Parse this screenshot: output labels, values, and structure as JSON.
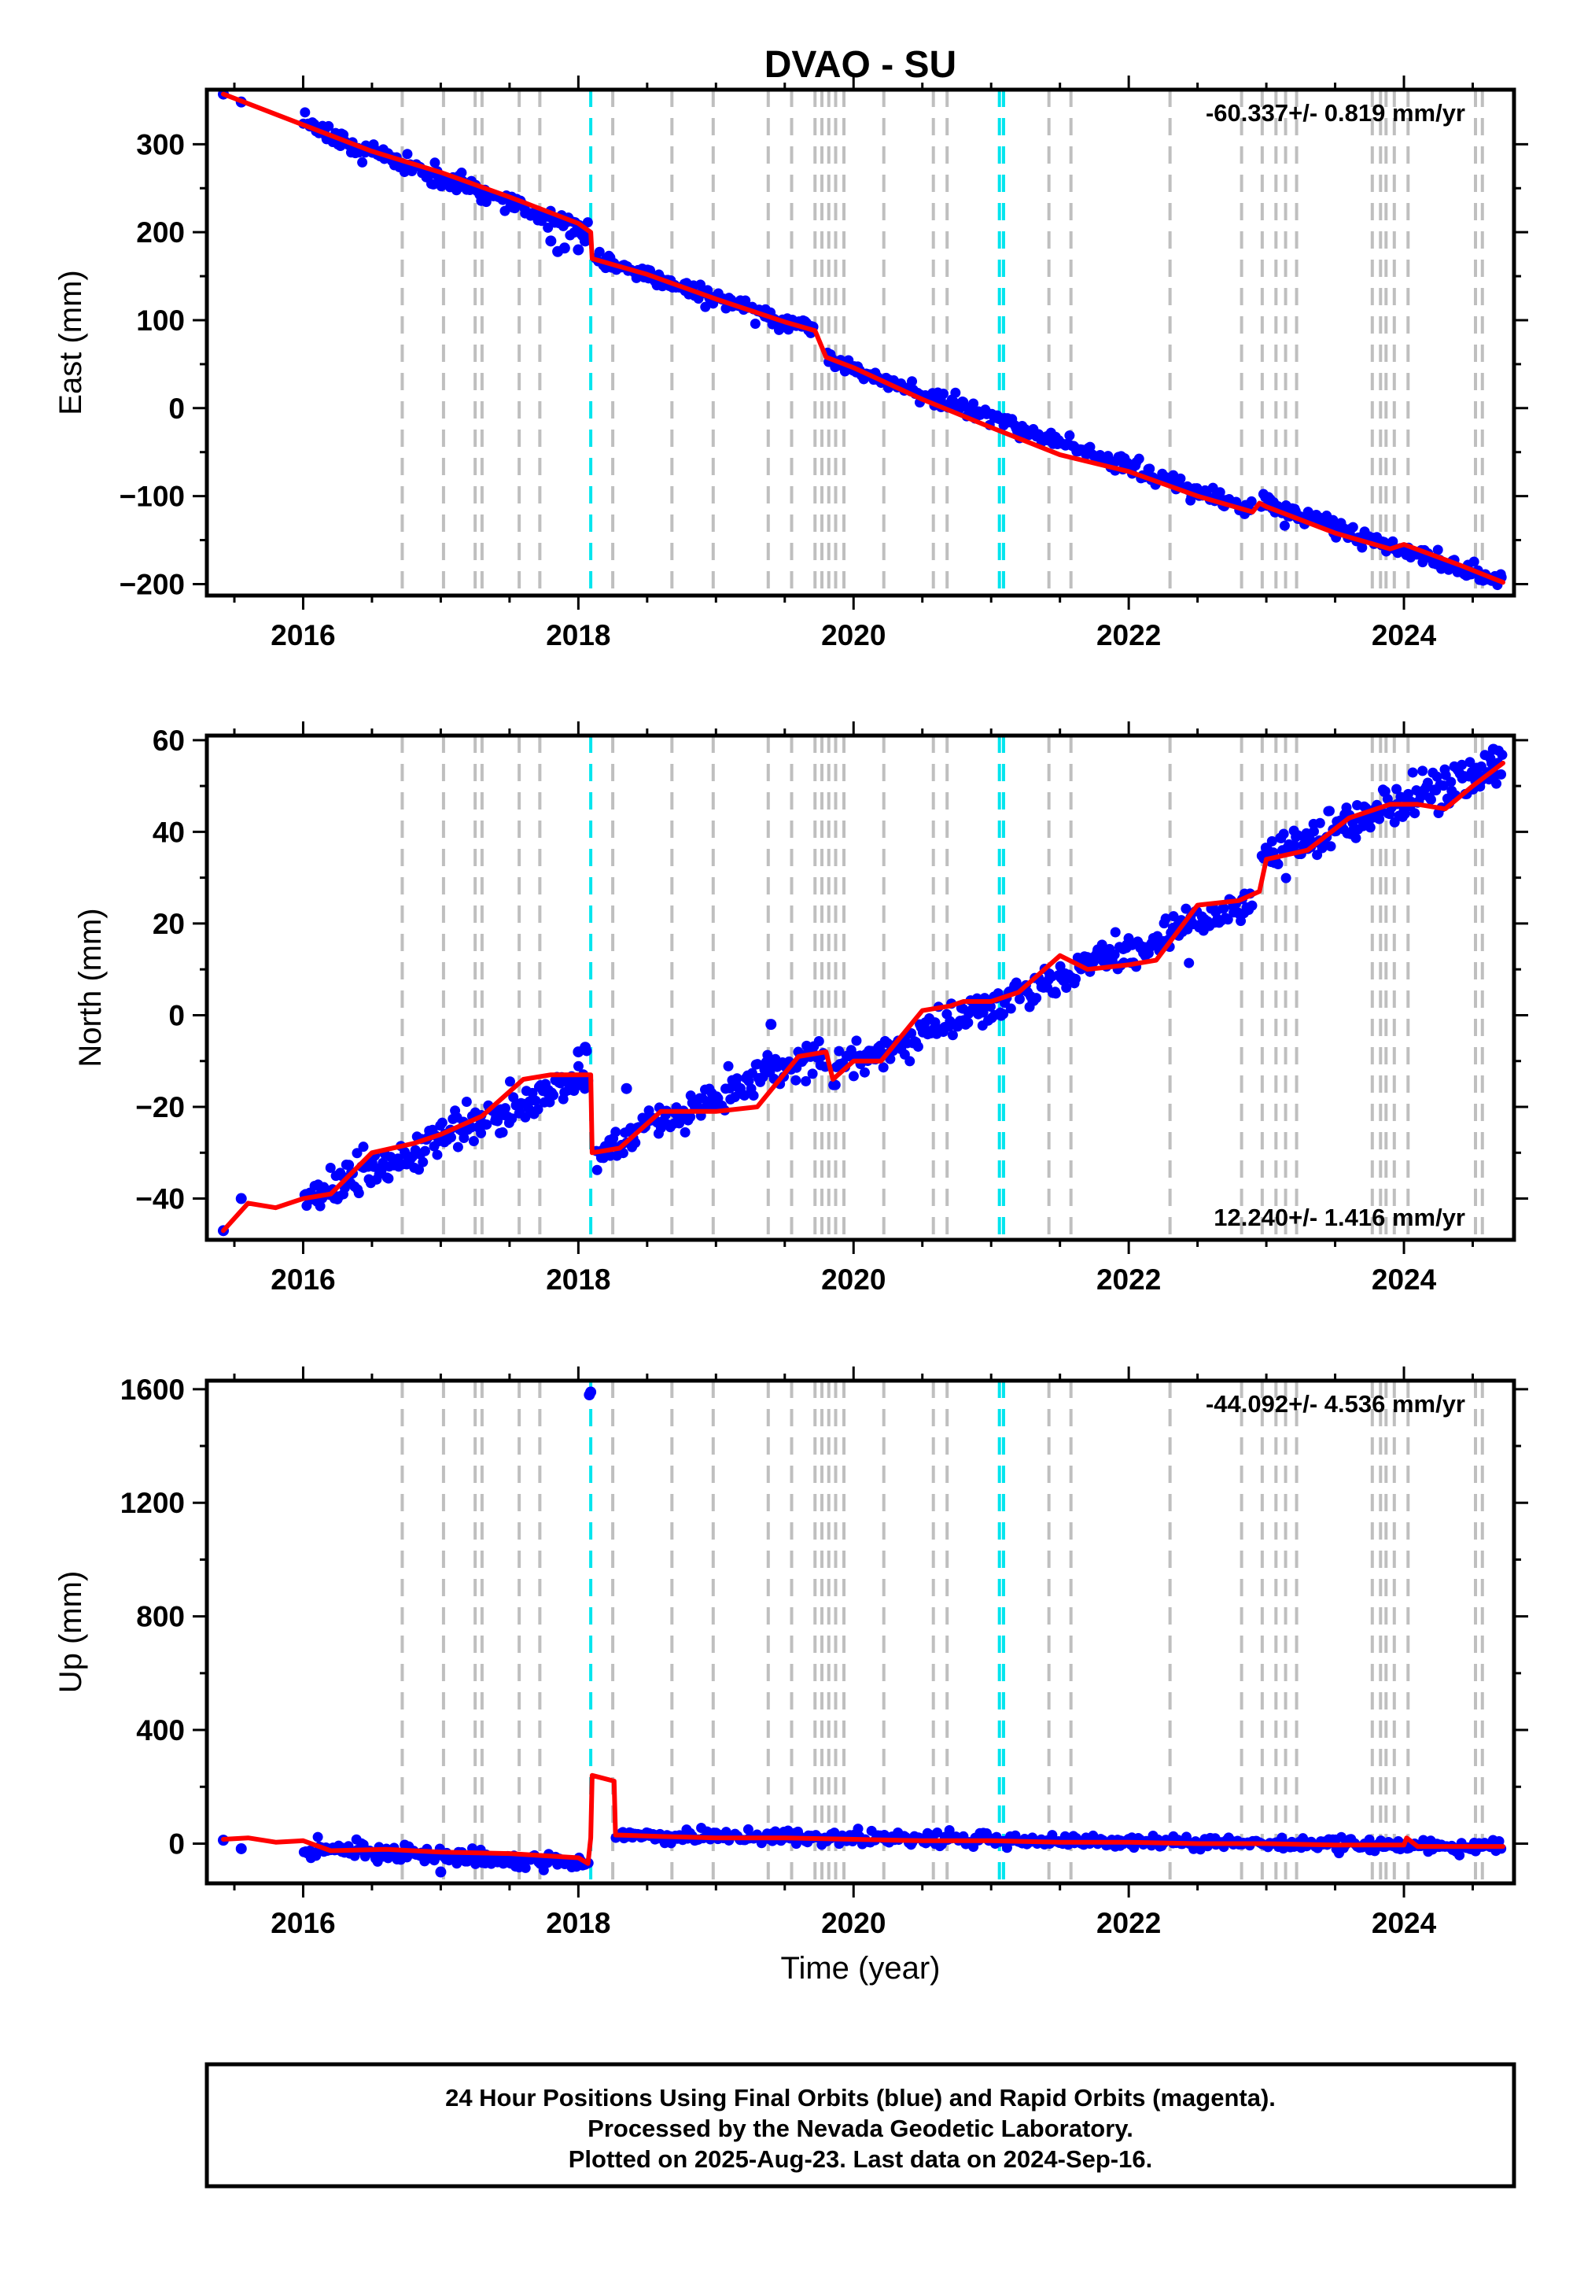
{
  "figure": {
    "title": "DVAO - SU",
    "xlabel": "Time (year)",
    "footer": {
      "line1": "24 Hour Positions Using Final Orbits (blue) and Rapid Orbits (magenta).",
      "line2": "Processed by the Nevada Geodetic Laboratory.",
      "line3": "Plotted on 2025-Aug-23. Last data on 2024-Sep-16."
    },
    "colors": {
      "data_points": "#0000ff",
      "model_line": "#ff0000",
      "equipment_change": "#bfbfbf",
      "earthquake": "#00e5ee",
      "frame": "#000000"
    },
    "gray_event_lines": [
      2016.72,
      2017.02,
      2017.25,
      2017.3,
      2017.57,
      2017.72,
      2018.25,
      2018.68,
      2018.98,
      2019.38,
      2019.55,
      2019.72,
      2019.77,
      2019.82,
      2019.87,
      2019.93,
      2020.22,
      2020.58,
      2020.68,
      2021.42,
      2021.58,
      2022.3,
      2022.82,
      2022.97,
      2023.07,
      2023.14,
      2023.22,
      2023.77,
      2023.83,
      2023.87,
      2023.93,
      2024.03,
      2024.52,
      2024.57
    ],
    "cyan_event_lines": [
      2018.09,
      2021.06,
      2021.09
    ]
  },
  "chart_data": [
    {
      "type": "scatter",
      "component": "east",
      "ylabel": "East (mm)",
      "rate_text": "-60.337+/- 0.819 mm/yr",
      "rate_position": "top-right",
      "xlim": [
        2015.3,
        2024.8
      ],
      "ylim": [
        -213,
        362
      ],
      "xticks": [
        2016,
        2018,
        2020,
        2022,
        2024
      ],
      "yticks": [
        300,
        200,
        100,
        0,
        -100,
        -200
      ],
      "ytick_labels": [
        "300",
        "200",
        "100",
        "0",
        "−100",
        "−200"
      ],
      "series": [
        {
          "kind": "model",
          "x": [
            2015.42,
            2016.0,
            2016.5,
            2017.0,
            2017.5,
            2018.0,
            2018.09,
            2018.1,
            2018.5,
            2019.0,
            2019.5,
            2019.72,
            2019.8,
            2020.0,
            2020.5,
            2021.0,
            2021.5,
            2022.0,
            2022.5,
            2022.9,
            2022.95,
            2023.0,
            2023.5,
            2023.9,
            2024.0,
            2024.4,
            2024.72
          ],
          "y": [
            357,
            322,
            292,
            268,
            240,
            210,
            200,
            170,
            152,
            124,
            98,
            88,
            58,
            46,
            10,
            -22,
            -53,
            -72,
            -100,
            -118,
            -108,
            -112,
            -142,
            -160,
            -155,
            -178,
            -198
          ]
        },
        {
          "kind": "daily",
          "segments": [
            {
              "x0": 2016.0,
              "x1": 2018.08,
              "y0": 320,
              "y1": 200,
              "n": 160,
              "noise": 6
            },
            {
              "x0": 2018.12,
              "x1": 2019.72,
              "y0": 170,
              "y1": 88,
              "n": 120,
              "noise": 5
            },
            {
              "x0": 2019.8,
              "x1": 2022.9,
              "y0": 57,
              "y1": -118,
              "n": 230,
              "noise": 5
            },
            {
              "x0": 2022.96,
              "x1": 2024.72,
              "y0": -108,
              "y1": -198,
              "n": 140,
              "noise": 5
            }
          ],
          "extra_points": [
            [
              2015.42,
              357
            ],
            [
              2015.55,
              348
            ],
            [
              2017.8,
              190
            ],
            [
              2017.85,
              178
            ],
            [
              2017.9,
              182
            ],
            [
              2018.0,
              180
            ],
            [
              2018.05,
              190
            ]
          ]
        }
      ]
    },
    {
      "type": "scatter",
      "component": "north",
      "ylabel": "North (mm)",
      "rate_text": "12.240+/- 1.416 mm/yr",
      "rate_position": "bottom-right",
      "xlim": [
        2015.3,
        2024.8
      ],
      "ylim": [
        -49,
        61
      ],
      "xticks": [
        2016,
        2018,
        2020,
        2022,
        2024
      ],
      "yticks": [
        60,
        40,
        20,
        0,
        -20,
        -40
      ],
      "ytick_labels": [
        "60",
        "40",
        "20",
        "0",
        "−20",
        "−40"
      ],
      "series": [
        {
          "kind": "model",
          "x": [
            2015.42,
            2015.6,
            2015.8,
            2016.0,
            2016.2,
            2016.5,
            2016.8,
            2017.0,
            2017.3,
            2017.6,
            2017.8,
            2018.0,
            2018.09,
            2018.1,
            2018.3,
            2018.6,
            2019.0,
            2019.3,
            2019.6,
            2019.8,
            2019.85,
            2020.0,
            2020.2,
            2020.5,
            2020.7,
            2020.8,
            2021.0,
            2021.2,
            2021.5,
            2021.7,
            2022.0,
            2022.2,
            2022.5,
            2022.8,
            2022.95,
            2023.0,
            2023.3,
            2023.6,
            2023.9,
            2024.1,
            2024.3,
            2024.5,
            2024.72
          ],
          "y": [
            -47,
            -41,
            -42,
            -40,
            -39,
            -30,
            -28,
            -26,
            -22,
            -14,
            -13,
            -13,
            -13,
            -30,
            -29,
            -21,
            -21,
            -20,
            -9,
            -8,
            -14,
            -10,
            -10,
            1,
            2,
            3,
            3,
            5,
            13,
            10,
            11,
            12,
            24,
            25,
            27,
            34,
            36,
            43,
            46,
            46,
            45,
            50,
            55
          ]
        },
        {
          "kind": "daily",
          "segments": [
            {
              "x0": 2016.0,
              "x1": 2018.08,
              "y0": -40,
              "y1": -13,
              "n": 180,
              "noise": 2.2
            },
            {
              "x0": 2018.12,
              "x1": 2019.8,
              "y0": -30,
              "y1": -8,
              "n": 140,
              "noise": 2.0
            },
            {
              "x0": 2019.85,
              "x1": 2022.9,
              "y0": -12,
              "y1": 25,
              "n": 260,
              "noise": 1.8
            },
            {
              "x0": 2022.96,
              "x1": 2024.72,
              "y0": 34,
              "y1": 55,
              "n": 160,
              "noise": 2.0
            }
          ],
          "extra_points": [
            [
              2015.42,
              -47
            ],
            [
              2015.55,
              -40
            ],
            [
              2018.05,
              -7
            ],
            [
              2018.0,
              -8
            ],
            [
              2019.4,
              -2
            ],
            [
              2018.35,
              -16
            ],
            [
              2024.65,
              58
            ]
          ]
        }
      ]
    },
    {
      "type": "scatter",
      "component": "up",
      "ylabel": "Up (mm)",
      "rate_text": "-44.092+/- 4.536 mm/yr",
      "rate_position": "top-right",
      "xlim": [
        2015.3,
        2024.8
      ],
      "ylim": [
        -140,
        1630
      ],
      "xticks": [
        2016,
        2018,
        2020,
        2022,
        2024
      ],
      "yticks": [
        1600,
        1200,
        800,
        400,
        0
      ],
      "ytick_labels": [
        "1600",
        "1200",
        "800",
        "400",
        "0"
      ],
      "series": [
        {
          "kind": "model",
          "x": [
            2015.42,
            2015.6,
            2015.8,
            2016.0,
            2016.2,
            2016.6,
            2017.0,
            2017.5,
            2018.0,
            2018.07,
            2018.09,
            2018.1,
            2018.26,
            2018.27,
            2018.3,
            2018.6,
            2019.0,
            2019.5,
            2020.0,
            2020.5,
            2021.0,
            2021.5,
            2022.0,
            2022.5,
            2023.0,
            2023.5,
            2024.0,
            2024.02,
            2024.1,
            2024.4,
            2024.72
          ],
          "y": [
            15,
            20,
            5,
            10,
            -25,
            -20,
            -30,
            -35,
            -50,
            -70,
            20,
            240,
            220,
            30,
            30,
            25,
            20,
            20,
            15,
            10,
            10,
            5,
            5,
            0,
            0,
            -5,
            -5,
            20,
            -10,
            -10,
            -10
          ]
        },
        {
          "kind": "daily",
          "segments": [
            {
              "x0": 2016.0,
              "x1": 2018.08,
              "y0": -20,
              "y1": -70,
              "n": 160,
              "noise": 14
            },
            {
              "x0": 2018.27,
              "x1": 2024.72,
              "y0": 30,
              "y1": -10,
              "n": 420,
              "noise": 12
            }
          ],
          "extra_points": [
            [
              2015.42,
              12
            ],
            [
              2015.55,
              -18
            ],
            [
              2017.0,
              -100
            ],
            [
              2018.09,
              1590
            ],
            [
              2018.08,
              1580
            ]
          ]
        }
      ]
    }
  ]
}
